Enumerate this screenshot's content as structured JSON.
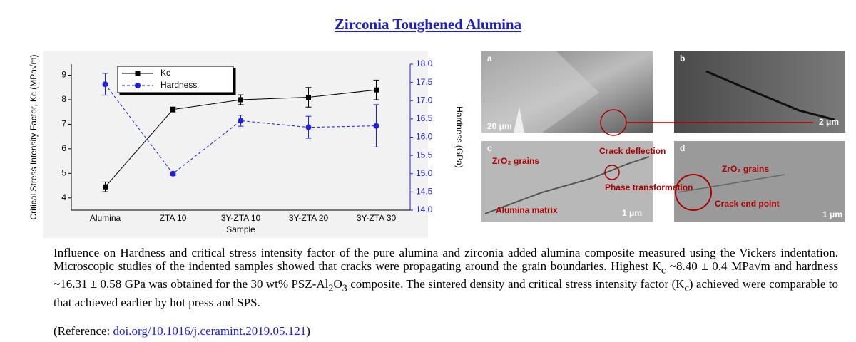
{
  "title": "Zirconia Toughened Alumina",
  "chart_data": {
    "type": "line",
    "x_label": "Sample",
    "y_label": "Critical Stress Intensity Factor, Kc (MPa√m)",
    "y2_label": "Hardness (GPa)",
    "categories": [
      "Alumina",
      "ZTA 10",
      "3Y-ZTA 10",
      "3Y-ZTA 20",
      "3Y-ZTA  30"
    ],
    "series": [
      {
        "name": "Kc",
        "color": "#000000",
        "marker": "square",
        "linestyle": "solid",
        "values": [
          4.45,
          7.6,
          8.0,
          8.1,
          8.4
        ],
        "errors": [
          0.2,
          0.1,
          0.2,
          0.4,
          0.4
        ]
      },
      {
        "name": "Hardness",
        "color": "#1f1fe0",
        "marker": "circle",
        "linestyle": "dashed",
        "axis": "y2",
        "values": [
          17.45,
          15.0,
          16.45,
          16.27,
          16.31
        ],
        "errors": [
          0.3,
          0.05,
          0.15,
          0.3,
          0.58
        ]
      }
    ],
    "ylim": [
      3.5,
      9.45
    ],
    "yticks": [
      4,
      5,
      6,
      7,
      8,
      9
    ],
    "y2lim": [
      14,
      18
    ],
    "y2ticks": [
      {
        "value": 18,
        "label": "18.0"
      },
      17.5,
      {
        "value": 17,
        "label": "17.0"
      },
      16.5,
      {
        "value": 16,
        "label": "16.0"
      },
      15.5,
      {
        "value": 15,
        "label": "15.0"
      },
      14.5,
      {
        "value": 14,
        "label": "14.0"
      }
    ],
    "legend": "upper left"
  },
  "panels": [
    {
      "label": "a",
      "scale": "20 μm"
    },
    {
      "label": "b",
      "scale": "2 μm"
    },
    {
      "label": "c",
      "scale": "1 μm",
      "annotations": [
        "ZrO₂ grains",
        "Crack deflection",
        "Phase transformation",
        "Alumina matrix"
      ]
    },
    {
      "label": "d",
      "scale": "1 μm",
      "annotations": [
        "ZrO₂ grains",
        "Crack end point"
      ]
    }
  ],
  "paragraph": [
    "Influence on Hardness and critical stress intensity factor of the pure alumina and zirconia added alumina composite measured using the Vickers indentation. Microscopic studies of the indented samples showed that cracks were propagating around the grain boundaries. Highest K",
    "c",
    " ~8.40 ± 0.4 MPa√m and hardness ~16.31 ± 0.58 GPa was obtained for the 30 wt% PSZ-Al",
    "2",
    "O",
    "3",
    " composite. The sintered density and critical stress intensity factor (K",
    "c",
    ") achieved were comparable to that achieved earlier by hot press and SPS."
  ],
  "reference": {
    "prefix": "(Reference: ",
    "link": "doi.org/10.1016/j.ceramint.2019.05.121",
    "suffix": ")"
  }
}
